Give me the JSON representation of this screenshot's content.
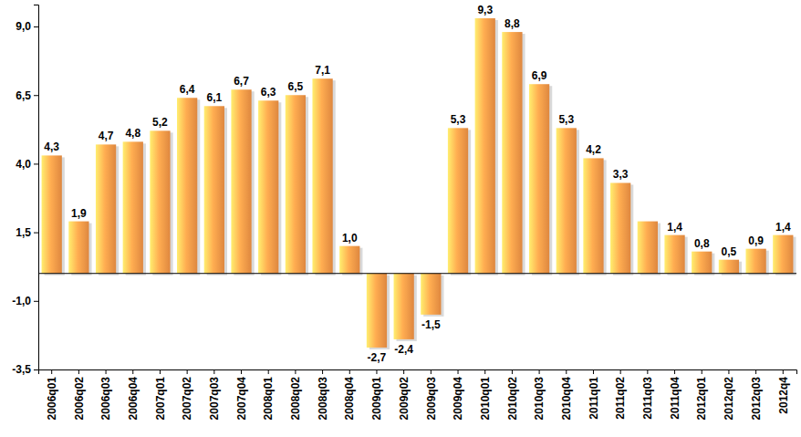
{
  "chart_data": {
    "type": "bar",
    "categories": [
      "2006q01",
      "2006q02",
      "2006q03",
      "2006q04",
      "2007q01",
      "2007q02",
      "2007q03",
      "2007q04",
      "2008q01",
      "2008q02",
      "2008q03",
      "2008q04",
      "2009q01",
      "2009q02",
      "2009q03",
      "2009q04",
      "2010q01",
      "2010q02",
      "2010q03",
      "2010q04",
      "2011q01",
      "2011q02",
      "2011q03",
      "2011q04",
      "2012q01",
      "2012q02",
      "2012q03",
      "2012q4"
    ],
    "values": [
      4.3,
      1.9,
      4.7,
      4.8,
      5.2,
      6.4,
      6.1,
      6.7,
      6.3,
      6.5,
      7.1,
      1.0,
      -2.7,
      -2.4,
      -1.5,
      5.3,
      9.3,
      8.8,
      6.9,
      5.3,
      4.2,
      3.3,
      1.9,
      1.4,
      0.8,
      0.5,
      0.9,
      1.4
    ],
    "value_labels": [
      "4,3",
      "1,9",
      "4,7",
      "4,8",
      "5,2",
      "6,4",
      "6,1",
      "6,7",
      "6,3",
      "6,5",
      "7,1",
      "1,0",
      "-2,7",
      "-2,4",
      "-1,5",
      "5,3",
      "9,3",
      "8,8",
      "6,9",
      "5,3",
      "4,2",
      "3,3",
      null,
      "1,4",
      "0,8",
      "0,5",
      "0,9",
      "1,4"
    ],
    "color": "#f79646",
    "ylim": [
      -3.5,
      9.8
    ],
    "yticks": [
      {
        "value": -3.5,
        "label": "-3,5"
      },
      {
        "value": -1.0,
        "label": "-1,0"
      },
      {
        "value": 1.5,
        "label": "1,5"
      },
      {
        "value": 4.0,
        "label": "4,0"
      },
      {
        "value": 6.5,
        "label": "6,5"
      },
      {
        "value": 9.0,
        "label": "9,0"
      }
    ],
    "grid": false,
    "data_labels": true
  }
}
